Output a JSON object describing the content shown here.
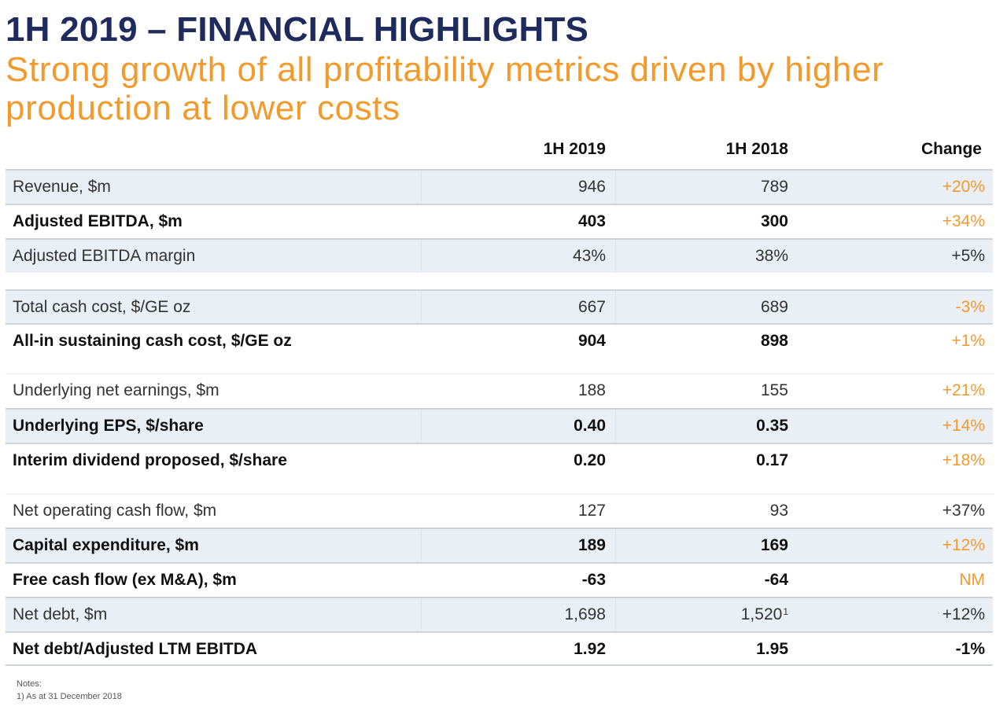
{
  "header": {
    "title": "1H 2019 – FINANCIAL HIGHLIGHTS",
    "subtitle": "Strong growth of all profitability metrics driven by higher production at lower costs"
  },
  "colors": {
    "title": "#1f2b5c",
    "accent": "#f39a2c",
    "row_shade": "#e9eff4"
  },
  "table": {
    "columns": [
      "",
      "1H 2019",
      "1H 2018",
      "Change"
    ],
    "rows": [
      {
        "label": "Revenue, $m",
        "h2019": "946",
        "h2018": "789",
        "footnote": "",
        "change": "+20%",
        "change_highlight": true,
        "bold": false,
        "shaded": true
      },
      {
        "label": "Adjusted EBITDA, $m",
        "h2019": "403",
        "h2018": "300",
        "footnote": "",
        "change": "+34%",
        "change_highlight": true,
        "bold": true,
        "shaded": false
      },
      {
        "label": "Adjusted EBITDA margin",
        "h2019": "43%",
        "h2018": "38%",
        "footnote": "",
        "change": "+5%",
        "change_highlight": false,
        "bold": false,
        "shaded": true
      },
      {
        "label": "Total cash cost, $/GE oz",
        "h2019": "667",
        "h2018": "689",
        "footnote": "",
        "change": "-3%",
        "change_highlight": true,
        "bold": false,
        "shaded": true
      },
      {
        "label": "All-in sustaining cash cost, $/GE oz",
        "h2019": "904",
        "h2018": "898",
        "footnote": "",
        "change": "+1%",
        "change_highlight": true,
        "bold": true,
        "shaded": false
      },
      {
        "label": "Underlying net earnings, $m",
        "h2019": "188",
        "h2018": "155",
        "footnote": "",
        "change": "+21%",
        "change_highlight": true,
        "bold": false,
        "shaded": false
      },
      {
        "label": "Underlying EPS, $/share",
        "h2019": "0.40",
        "h2018": "0.35",
        "footnote": "",
        "change": "+14%",
        "change_highlight": true,
        "bold": true,
        "shaded": true
      },
      {
        "label": "Interim dividend proposed, $/share",
        "h2019": "0.20",
        "h2018": "0.17",
        "footnote": "",
        "change": "+18%",
        "change_highlight": true,
        "bold": true,
        "shaded": false
      },
      {
        "label": "Net operating cash flow, $m",
        "h2019": "127",
        "h2018": "93",
        "footnote": "",
        "change": "+37%",
        "change_highlight": false,
        "bold": false,
        "shaded": false
      },
      {
        "label": "Capital expenditure, $m",
        "h2019": "189",
        "h2018": "169",
        "footnote": "",
        "change": "+12%",
        "change_highlight": true,
        "bold": true,
        "shaded": true
      },
      {
        "label": "Free cash flow (ex M&A), $m",
        "h2019": "-63",
        "h2018": "-64",
        "footnote": "",
        "change": "NM",
        "change_highlight": true,
        "bold": true,
        "shaded": false
      },
      {
        "label": "Net debt, $m",
        "h2019": "1,698",
        "h2018": "1,520",
        "footnote": "1",
        "change": "+12%",
        "change_highlight": false,
        "bold": false,
        "shaded": true
      },
      {
        "label": "Net debt/Adjusted LTM EBITDA",
        "h2019": "1.92",
        "h2018": "1.95",
        "footnote": "",
        "change": "-1%",
        "change_highlight": false,
        "bold": true,
        "shaded": false
      }
    ]
  },
  "notes": {
    "heading": "Notes:",
    "items": [
      "1) As at 31 December 2018"
    ]
  }
}
